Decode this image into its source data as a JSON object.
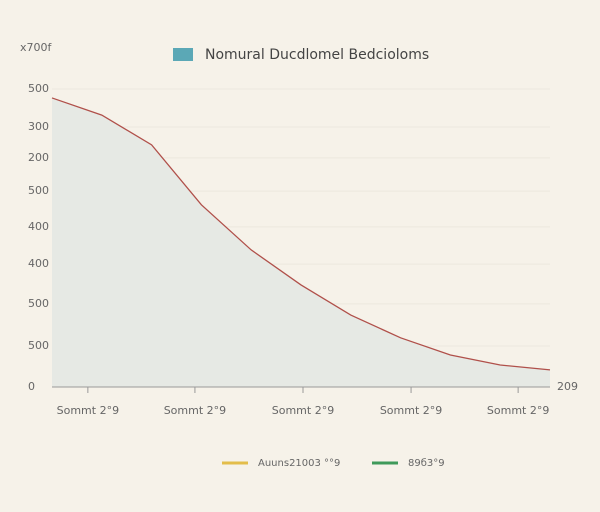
{
  "chart_data": {
    "type": "area",
    "title": "Nomural Ducdlomel Bedcioloms",
    "y_axis_label": "x700f",
    "x_axis_label": "209",
    "legend_swatch_color": "#5ba8b6",
    "line_color": "#b0504a",
    "fill_color": "#e6e9e4",
    "grid": true,
    "x": [
      0,
      10,
      20,
      30,
      40,
      50,
      60,
      70,
      80,
      90,
      100
    ],
    "series": [
      {
        "name": "Nomural Ducdlomel Bedcioloms",
        "color": "#b0504a",
        "values": [
          776,
          730,
          650,
          489,
          368,
          274,
          193,
          132,
          86,
          59,
          46
        ]
      }
    ],
    "xlim": [
      0,
      100
    ],
    "xticks": [
      {
        "value": 7.2,
        "label": "Sommt 2°9"
      },
      {
        "value": 28.7,
        "label": "Sommt 2°9"
      },
      {
        "value": 50.4,
        "label": "Sommt 2°9"
      },
      {
        "value": 72.1,
        "label": "Sommt 2°9"
      },
      {
        "value": 93.6,
        "label": "Sommt 2°9"
      }
    ],
    "ylim": [
      0,
      800
    ],
    "yticks": [
      0,
      {
        "value": 110,
        "label": "500"
      },
      {
        "value": 223,
        "label": "500"
      },
      {
        "value": 330,
        "label": "400"
      },
      {
        "value": 430,
        "label": "400"
      },
      {
        "value": 526,
        "label": "500"
      },
      {
        "value": 615,
        "label": "200"
      },
      {
        "value": 698,
        "label": "300"
      },
      {
        "value": 800,
        "label": "500"
      }
    ],
    "legend_items": [
      {
        "name": "Auuns21003 °°9",
        "color": "#e3bd4a"
      },
      {
        "name": "89б3°9",
        "color": "#3f9a5a"
      }
    ]
  }
}
